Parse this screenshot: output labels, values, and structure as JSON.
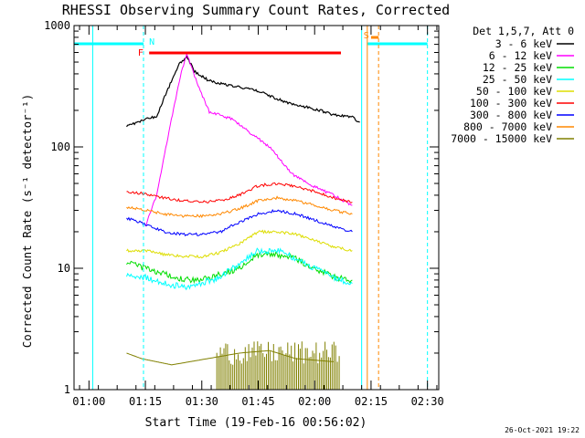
{
  "chart_data": {
    "type": "line",
    "title": "RHESSI Observing Summary Count Rates, Corrected",
    "xlabel": "Start Time (19-Feb-16 00:56:02)",
    "ylabel": "Corrected Count Rate (s⁻¹ detector⁻¹)",
    "yscale": "log",
    "xlim": [
      "00:56:02",
      "02:33:00"
    ],
    "ylim": [
      1,
      1000
    ],
    "x_ticks": [
      "01:00",
      "01:15",
      "01:30",
      "01:45",
      "02:00",
      "02:15",
      "02:30"
    ],
    "y_ticks": [
      "1",
      "10",
      "100",
      "1000"
    ],
    "legend_title": "Det 1,5,7, Att 0",
    "legend_position": "right",
    "timestamp": "26-Oct-2021 19:22",
    "series": [
      {
        "name": "3 - 6 keV",
        "color": "#000000",
        "points": [
          [
            "01:10",
            "150"
          ],
          [
            "01:13",
            "160"
          ],
          [
            "01:18",
            "180"
          ],
          [
            "01:21",
            "300"
          ],
          [
            "01:24",
            "480"
          ],
          [
            "01:26",
            "560"
          ],
          [
            "01:28",
            "420"
          ],
          [
            "01:32",
            "350"
          ],
          [
            "01:38",
            "320"
          ],
          [
            "01:45",
            "290"
          ],
          [
            "01:52",
            "235"
          ],
          [
            "02:00",
            "205"
          ],
          [
            "02:05",
            "185"
          ],
          [
            "02:10",
            "175"
          ],
          [
            "02:12",
            "160"
          ]
        ]
      },
      {
        "name": "6 - 12 keV",
        "color": "#ff00ff",
        "points": [
          [
            "01:15",
            "22"
          ],
          [
            "01:18",
            "40"
          ],
          [
            "01:21",
            "120"
          ],
          [
            "01:24",
            "350"
          ],
          [
            "01:26",
            "590"
          ],
          [
            "01:29",
            "320"
          ],
          [
            "01:32",
            "195"
          ],
          [
            "01:38",
            "170"
          ],
          [
            "01:43",
            "130"
          ],
          [
            "01:48",
            "100"
          ],
          [
            "01:54",
            "60"
          ],
          [
            "01:58",
            "50"
          ],
          [
            "02:05",
            "40"
          ],
          [
            "02:10",
            "33"
          ]
        ]
      },
      {
        "name": "12 - 25 keV",
        "color": "#00dd00",
        "points": [
          [
            "01:10",
            "11"
          ],
          [
            "01:15",
            "10"
          ],
          [
            "01:20",
            "9"
          ],
          [
            "01:25",
            "8"
          ],
          [
            "01:30",
            "8"
          ],
          [
            "01:35",
            "9"
          ],
          [
            "01:40",
            "10"
          ],
          [
            "01:45",
            "13"
          ],
          [
            "01:50",
            "13"
          ],
          [
            "01:55",
            "12"
          ],
          [
            "02:00",
            "10"
          ],
          [
            "02:05",
            "8.5"
          ],
          [
            "02:10",
            "8"
          ]
        ]
      },
      {
        "name": "25 - 50 keV",
        "color": "#00ffff",
        "points": [
          [
            "01:10",
            "9"
          ],
          [
            "01:15",
            "8.5"
          ],
          [
            "01:20",
            "7.5"
          ],
          [
            "01:25",
            "7"
          ],
          [
            "01:30",
            "7.5"
          ],
          [
            "01:35",
            "8.5"
          ],
          [
            "01:40",
            "11"
          ],
          [
            "01:45",
            "14"
          ],
          [
            "01:50",
            "14"
          ],
          [
            "01:55",
            "12"
          ],
          [
            "02:00",
            "10"
          ],
          [
            "02:05",
            "8.5"
          ],
          [
            "02:10",
            "7.5"
          ]
        ]
      },
      {
        "name": "50 - 100 keV",
        "color": "#dddd00",
        "points": [
          [
            "01:10",
            "14"
          ],
          [
            "01:15",
            "14"
          ],
          [
            "01:20",
            "13"
          ],
          [
            "01:25",
            "12.5"
          ],
          [
            "01:30",
            "12.5"
          ],
          [
            "01:35",
            "13.5"
          ],
          [
            "01:40",
            "16"
          ],
          [
            "01:45",
            "20"
          ],
          [
            "01:50",
            "20"
          ],
          [
            "01:55",
            "19"
          ],
          [
            "02:00",
            "17"
          ],
          [
            "02:05",
            "15"
          ],
          [
            "02:10",
            "14"
          ]
        ]
      },
      {
        "name": "100 - 300 keV",
        "color": "#ff0000",
        "points": [
          [
            "01:10",
            "43"
          ],
          [
            "01:15",
            "41"
          ],
          [
            "01:20",
            "38"
          ],
          [
            "01:25",
            "36"
          ],
          [
            "01:30",
            "35"
          ],
          [
            "01:35",
            "36"
          ],
          [
            "01:40",
            "40"
          ],
          [
            "01:45",
            "48"
          ],
          [
            "01:50",
            "50"
          ],
          [
            "01:55",
            "47"
          ],
          [
            "02:00",
            "43"
          ],
          [
            "02:05",
            "38"
          ],
          [
            "02:10",
            "35"
          ]
        ]
      },
      {
        "name": "300 - 800 keV",
        "color": "#0000ff",
        "points": [
          [
            "01:10",
            "26"
          ],
          [
            "01:15",
            "23"
          ],
          [
            "01:20",
            "20"
          ],
          [
            "01:25",
            "19"
          ],
          [
            "01:30",
            "19"
          ],
          [
            "01:35",
            "20"
          ],
          [
            "01:40",
            "24"
          ],
          [
            "01:45",
            "28"
          ],
          [
            "01:50",
            "30"
          ],
          [
            "01:55",
            "28"
          ],
          [
            "02:00",
            "25"
          ],
          [
            "02:05",
            "22"
          ],
          [
            "02:10",
            "20"
          ]
        ]
      },
      {
        "name": "800 - 7000 keV",
        "color": "#ff8800",
        "points": [
          [
            "01:10",
            "32"
          ],
          [
            "01:15",
            "30"
          ],
          [
            "01:20",
            "28"
          ],
          [
            "01:25",
            "27"
          ],
          [
            "01:30",
            "27"
          ],
          [
            "01:35",
            "28"
          ],
          [
            "01:40",
            "31"
          ],
          [
            "01:45",
            "36"
          ],
          [
            "01:50",
            "38"
          ],
          [
            "01:55",
            "36"
          ],
          [
            "02:00",
            "33"
          ],
          [
            "02:05",
            "30"
          ],
          [
            "02:10",
            "28"
          ]
        ]
      },
      {
        "name": "7000 - 15000 keV",
        "color": "#808000",
        "points": [
          [
            "01:10",
            "2"
          ],
          [
            "01:14",
            "1.8"
          ],
          [
            "01:22",
            "1.6"
          ],
          [
            "01:40",
            "2"
          ],
          [
            "01:48",
            "2.1"
          ],
          [
            "01:55",
            "1.8"
          ],
          [
            "02:05",
            "1.7"
          ]
        ]
      }
    ],
    "markers": [
      {
        "label": "N",
        "color": "#00ffff"
      },
      {
        "label": "F",
        "color": "#ff0000"
      },
      {
        "label": "S",
        "color": "#ff8800"
      }
    ],
    "bars": [
      {
        "kind": "night",
        "color": "#00ffff",
        "from": "00:56:02",
        "to": "01:14:30"
      },
      {
        "kind": "night",
        "color": "#00ffff",
        "from": "02:14:00",
        "to": "02:30:00"
      },
      {
        "kind": "flare",
        "color": "#ff0000",
        "from": "01:16:00",
        "to": "02:07:00"
      },
      {
        "kind": "saa",
        "color": "#ff8800",
        "from": "02:15:00",
        "to": "02:17:00"
      }
    ]
  }
}
